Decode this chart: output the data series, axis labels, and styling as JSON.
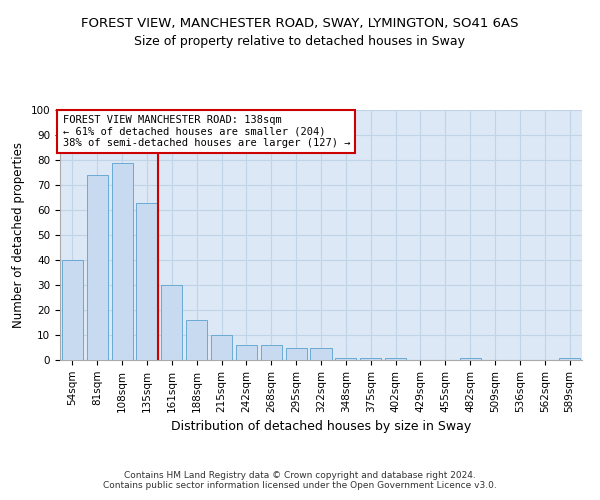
{
  "title1": "FOREST VIEW, MANCHESTER ROAD, SWAY, LYMINGTON, SO41 6AS",
  "title2": "Size of property relative to detached houses in Sway",
  "xlabel": "Distribution of detached houses by size in Sway",
  "ylabel": "Number of detached properties",
  "footer": "Contains HM Land Registry data © Crown copyright and database right 2024.\nContains public sector information licensed under the Open Government Licence v3.0.",
  "bins": [
    "54sqm",
    "81sqm",
    "108sqm",
    "135sqm",
    "161sqm",
    "188sqm",
    "215sqm",
    "242sqm",
    "268sqm",
    "295sqm",
    "322sqm",
    "348sqm",
    "375sqm",
    "402sqm",
    "429sqm",
    "455sqm",
    "482sqm",
    "509sqm",
    "536sqm",
    "562sqm",
    "589sqm"
  ],
  "values": [
    40,
    74,
    79,
    63,
    30,
    16,
    10,
    6,
    6,
    5,
    5,
    1,
    1,
    1,
    0,
    0,
    1,
    0,
    0,
    0,
    1
  ],
  "bar_color": "#c8daf0",
  "bar_edge_color": "#6aaad4",
  "vline_x_index": 3,
  "vline_color": "#cc0000",
  "annotation_text": "FOREST VIEW MANCHESTER ROAD: 138sqm\n← 61% of detached houses are smaller (204)\n38% of semi-detached houses are larger (127) →",
  "annotation_box_color": "white",
  "annotation_box_edge_color": "#cc0000",
  "ylim": [
    0,
    100
  ],
  "yticks": [
    0,
    10,
    20,
    30,
    40,
    50,
    60,
    70,
    80,
    90,
    100
  ],
  "grid_color": "#c0d4e8",
  "background_color": "#dce8f5",
  "title1_fontsize": 9.5,
  "title2_fontsize": 9,
  "xlabel_fontsize": 9,
  "ylabel_fontsize": 8.5,
  "tick_fontsize": 7.5,
  "annotation_fontsize": 7.5
}
